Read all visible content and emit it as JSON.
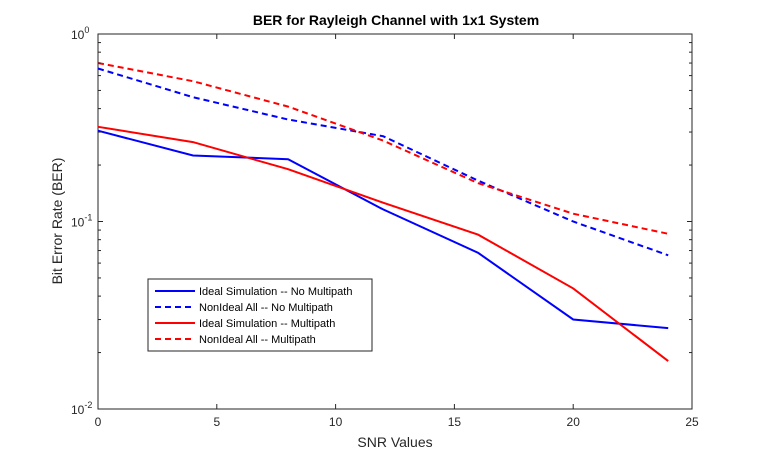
{
  "chart_data": {
    "type": "line",
    "title": "BER for Rayleigh Channel with 1x1 System",
    "xlabel": "SNR Values",
    "ylabel": "Bit Error Rate (BER)",
    "xlim": [
      0,
      25
    ],
    "ylim": [
      0.01,
      1
    ],
    "yscale": "log",
    "grid": false,
    "legend_position": "lower-left",
    "x_ticks": [
      "0",
      "5",
      "10",
      "15",
      "20",
      "25"
    ],
    "y_ticks": [
      {
        "base": "10",
        "exp": "-2",
        "value": 0.01
      },
      {
        "base": "10",
        "exp": "-1",
        "value": 0.1
      },
      {
        "base": "10",
        "exp": "0",
        "value": 1
      }
    ],
    "x": [
      0,
      4,
      8,
      12,
      16,
      20,
      24
    ],
    "series": [
      {
        "name": "Ideal Simulation -- No Multipath",
        "color": "#0000ff",
        "dash": "solid",
        "values": [
          0.305,
          0.225,
          0.215,
          0.116,
          0.068,
          0.03,
          0.027
        ]
      },
      {
        "name": "NonIdeal All -- No Multipath",
        "color": "#0000ff",
        "dash": "dashed",
        "values": [
          0.655,
          0.46,
          0.35,
          0.285,
          0.165,
          0.1,
          0.066
        ]
      },
      {
        "name": "Ideal Simulation -- Multipath",
        "color": "#ff0000",
        "dash": "solid",
        "values": [
          0.32,
          0.265,
          0.19,
          0.126,
          0.085,
          0.044,
          0.018
        ]
      },
      {
        "name": "NonIdeal All -- Multipath",
        "color": "#ff0000",
        "dash": "dashed",
        "values": [
          0.7,
          0.56,
          0.41,
          0.27,
          0.16,
          0.11,
          0.086
        ]
      }
    ]
  }
}
